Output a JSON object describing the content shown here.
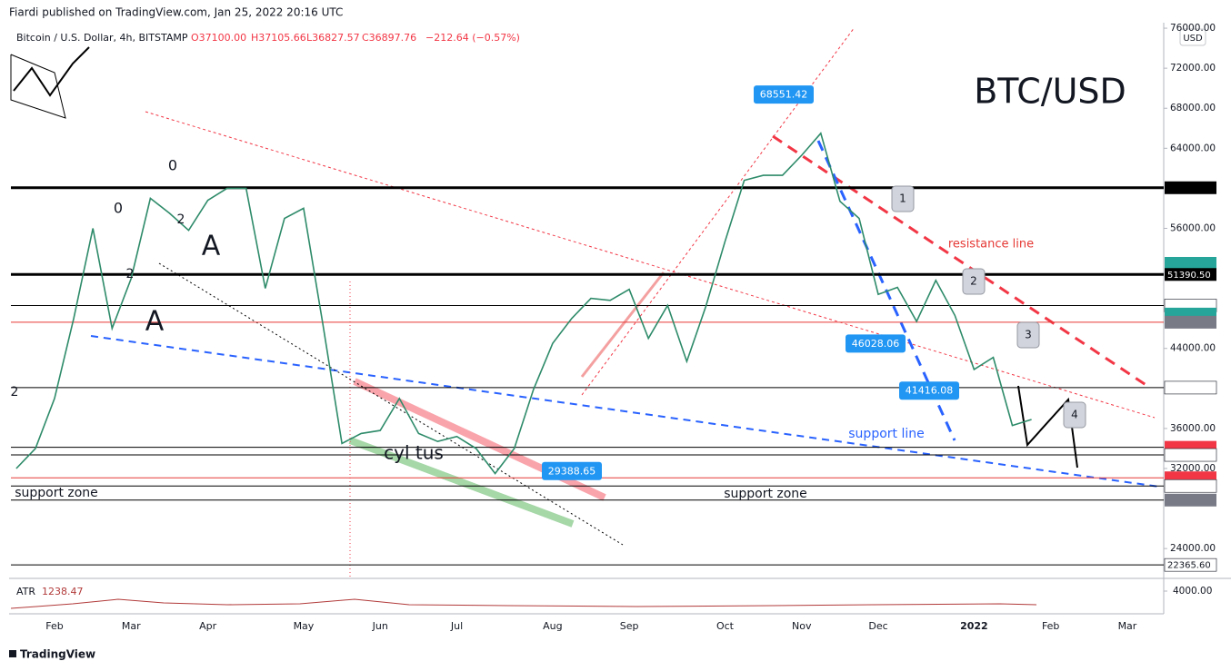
{
  "header": {
    "publisher": "Fiardi published on TradingView.com, Jan 25, 2022 20:16 UTC",
    "symbol": "Bitcoin / U.S. Dollar, 4h, BITSTAMP",
    "open": "O37100.00",
    "high": "H37105.66",
    "low": "L36827.57",
    "close": "C36897.76",
    "change": "−212.64 (−0.57%)",
    "currency": "USD",
    "footer": "TradingView"
  },
  "chart_data": {
    "type": "line",
    "title": "BTC/USD",
    "color": "#2e8b6a",
    "categories": [
      null,
      null,
      "Feb",
      null,
      null,
      null,
      "Mar",
      null,
      null,
      null,
      "Apr",
      null,
      null,
      null,
      null,
      "May",
      null,
      null,
      null,
      "Jun",
      null,
      null,
      null,
      "Jul",
      null,
      null,
      null,
      null,
      "Aug",
      null,
      null,
      null,
      "Sep",
      null,
      null,
      null,
      null,
      "Oct",
      null,
      null,
      null,
      "Nov",
      null,
      null,
      null,
      "Dec",
      null,
      null,
      null,
      null,
      "2022",
      null,
      null,
      null,
      "Feb",
      null,
      null,
      null,
      "Mar",
      null
    ],
    "values": [
      32000,
      34000,
      39000,
      47000,
      56000,
      46000,
      51000,
      59000,
      57500,
      55800,
      58800,
      60000,
      60000,
      50000,
      57000,
      58000,
      46500,
      34500,
      35500,
      35800,
      39000,
      35500,
      34700,
      35200,
      34000,
      31500,
      34000,
      39900,
      44500,
      47000,
      49000,
      48800,
      49900,
      45000,
      48300,
      42700,
      48200,
      54700,
      60800,
      61300,
      61300,
      63300,
      65500,
      58700,
      57000,
      49400,
      50100,
      46700,
      50800,
      47300,
      41900,
      43100,
      36300,
      36900,
      null,
      null,
      null,
      null,
      null,
      null
    ],
    "ylim": [
      21200,
      76550
    ],
    "yticks": [
      {
        "value": 24000,
        "label": "24000.00"
      },
      {
        "value": 32000,
        "label": "32000.00"
      },
      {
        "value": 36000,
        "label": "36000.00"
      },
      {
        "value": 44000,
        "label": "44000.00"
      },
      {
        "value": 56000,
        "label": "56000.00"
      },
      {
        "value": 64000,
        "label": "64000.00"
      },
      {
        "value": 68000,
        "label": "68000.00"
      },
      {
        "value": 72000,
        "label": "72000.00"
      },
      {
        "value": 76000,
        "label": "76000.00"
      }
    ],
    "grid": false,
    "levels": [
      {
        "value": 60057.18,
        "color": "#000000",
        "line": "thick"
      },
      {
        "value": 52505.74,
        "color": "#26a69a",
        "line": "none"
      },
      {
        "value": 51390.5,
        "label": "51390.50",
        "color": "#000000",
        "line": "thick"
      },
      {
        "value": 48288.48,
        "color": "#ffffff",
        "line": "thin"
      },
      {
        "value": 47433.55,
        "color": "#26a69a",
        "line": "none"
      },
      {
        "value": 46617.48,
        "color": "#787b86",
        "line": "red"
      },
      {
        "value": 40080.64,
        "color": "#ffffff",
        "line": "thin"
      },
      {
        "value": 34117.18,
        "color": "#f23645",
        "line": "thin"
      },
      {
        "value": 33354.22,
        "color": "#ffffff",
        "line": "thin"
      },
      {
        "value": 31070.86,
        "color": "#f23645",
        "line": "red"
      },
      {
        "value": 30253.61,
        "color": "#ffffff",
        "line": "thin"
      },
      {
        "value": 28844.03,
        "color": "#787b86",
        "line": "thin"
      },
      {
        "value": 22365.6,
        "label": "22365.60",
        "color": "#ffffff",
        "line": "thin"
      }
    ],
    "callouts": [
      68551.42,
      29388.65,
      46028.06,
      41416.08
    ],
    "annotations": [
      "0",
      "0",
      "2",
      "2",
      "2",
      "A",
      "A",
      "cyl tus",
      "support zone",
      "support zone",
      "resistance line",
      "support line",
      "1",
      "2",
      "3",
      "4"
    ],
    "atr": {
      "name": "ATR",
      "value": 1238.47,
      "yticks": [
        {
          "value": 4000,
          "label": "4000.00"
        }
      ]
    }
  }
}
